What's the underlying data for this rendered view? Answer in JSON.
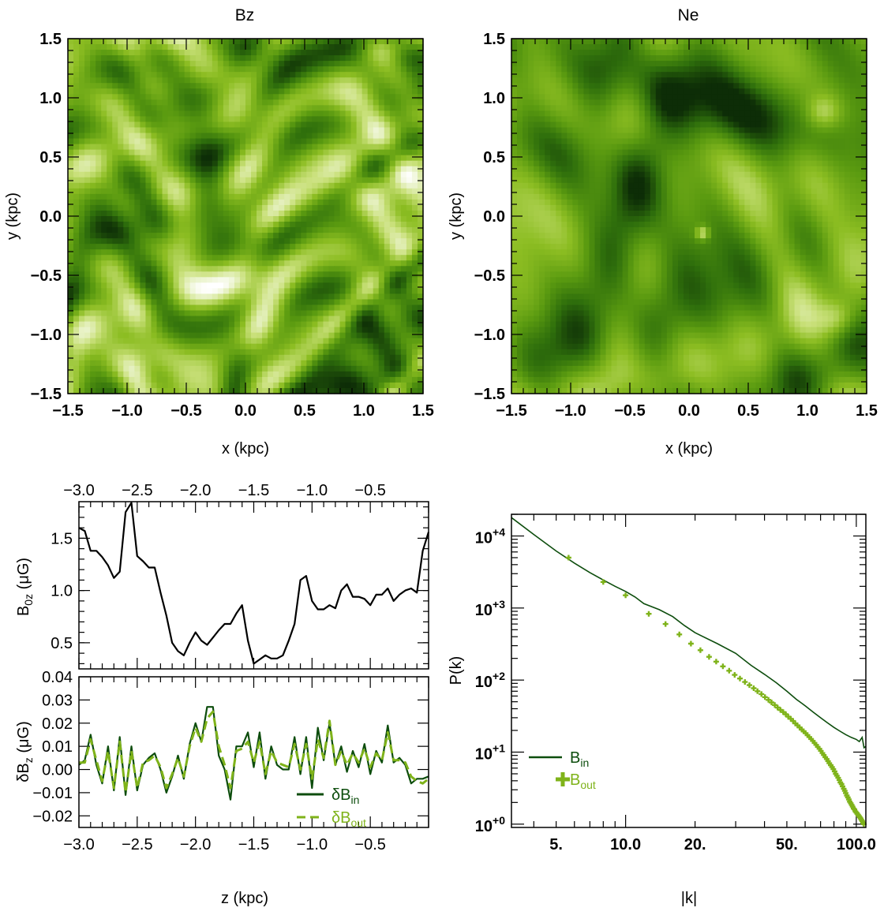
{
  "chart_data": [
    {
      "type": "heatmap",
      "title": "Bz",
      "xlabel": "x (kpc)",
      "ylabel": "y (kpc)",
      "xlim": [
        -1.5,
        1.5
      ],
      "ylim": [
        -1.5,
        1.5
      ],
      "xticks": [
        "−1.5",
        "−1.0",
        "−0.5",
        "0.0",
        "0.5",
        "1.0",
        "1.5"
      ],
      "yticks": [
        "−1.5",
        "−1.0",
        "−0.5",
        "0.0",
        "0.5",
        "1.0",
        "1.5"
      ],
      "colormap": [
        "#0d2d07",
        "#2f6f0c",
        "#5a9a10",
        "#8cbd22",
        "#c9e07a",
        "#ffffff"
      ]
    },
    {
      "type": "heatmap",
      "title": "Ne",
      "xlabel": "x (kpc)",
      "ylabel": "y (kpc)",
      "xlim": [
        -1.5,
        1.5
      ],
      "ylim": [
        -1.5,
        1.5
      ],
      "xticks": [
        "−1.5",
        "−1.0",
        "−0.5",
        "0.0",
        "0.5",
        "1.0",
        "1.5"
      ],
      "yticks": [
        "−1.5",
        "−1.0",
        "−0.5",
        "0.0",
        "0.5",
        "1.0",
        "1.5"
      ],
      "colormap": [
        "#0d2d07",
        "#2f6f0c",
        "#5a9a10",
        "#8cbd22",
        "#c9e07a",
        "#ffffff"
      ]
    },
    {
      "type": "line",
      "ylabel_main": "B",
      "ylabel_sub": "0z",
      "ylabel_unit": "(μG)",
      "xlim": [
        -3.0,
        0.0
      ],
      "ylim": [
        0.25,
        1.85
      ],
      "xticks": [
        "−3.0",
        "−2.5",
        "−2.0",
        "−1.5",
        "−1.0",
        "−0.5"
      ],
      "yticks": [
        "0.5",
        "1.0",
        "1.5"
      ],
      "series": [
        {
          "color": "#000000",
          "x": [
            -3.0,
            -2.95,
            -2.9,
            -2.85,
            -2.8,
            -2.75,
            -2.7,
            -2.65,
            -2.6,
            -2.55,
            -2.5,
            -2.45,
            -2.4,
            -2.35,
            -2.3,
            -2.25,
            -2.2,
            -2.15,
            -2.1,
            -2.05,
            -2.0,
            -1.95,
            -1.9,
            -1.85,
            -1.8,
            -1.75,
            -1.7,
            -1.65,
            -1.6,
            -1.55,
            -1.5,
            -1.45,
            -1.4,
            -1.35,
            -1.3,
            -1.25,
            -1.2,
            -1.15,
            -1.1,
            -1.05,
            -1.0,
            -0.95,
            -0.9,
            -0.85,
            -0.8,
            -0.75,
            -0.7,
            -0.65,
            -0.6,
            -0.55,
            -0.5,
            -0.45,
            -0.4,
            -0.35,
            -0.3,
            -0.25,
            -0.2,
            -0.15,
            -0.1,
            -0.05,
            0.0
          ],
          "y": [
            1.6,
            1.57,
            1.38,
            1.38,
            1.32,
            1.24,
            1.12,
            1.18,
            1.75,
            1.84,
            1.33,
            1.28,
            1.22,
            1.22,
            0.98,
            0.76,
            0.5,
            0.42,
            0.38,
            0.5,
            0.6,
            0.52,
            0.48,
            0.55,
            0.62,
            0.68,
            0.68,
            0.78,
            0.86,
            0.52,
            0.3,
            0.34,
            0.38,
            0.35,
            0.35,
            0.38,
            0.52,
            0.68,
            1.1,
            1.14,
            0.9,
            0.82,
            0.82,
            0.86,
            0.83,
            1.0,
            1.06,
            0.94,
            0.94,
            0.92,
            0.86,
            0.96,
            0.96,
            1.02,
            0.9,
            0.96,
            1.0,
            1.02,
            0.98,
            1.38,
            1.56
          ]
        }
      ]
    },
    {
      "type": "line",
      "xlabel": "z (kpc)",
      "ylabel_main": "δB",
      "ylabel_sub": "z",
      "ylabel_unit": "(μG)",
      "xlim": [
        -3.0,
        0.0
      ],
      "ylim": [
        -0.025,
        0.04
      ],
      "xticks": [
        "−3.0",
        "−2.5",
        "−2.0",
        "−1.5",
        "−1.0",
        "−0.5"
      ],
      "yticks": [
        "−0.02",
        "−0.01",
        "0.00",
        "0.01",
        "0.02",
        "0.03",
        "0.04"
      ],
      "series": [
        {
          "name_main": "δB",
          "name_sub": "in",
          "color": "#0d4d0d",
          "dash": "solid",
          "x": [
            -3.0,
            -2.95,
            -2.9,
            -2.85,
            -2.8,
            -2.75,
            -2.7,
            -2.65,
            -2.6,
            -2.55,
            -2.5,
            -2.45,
            -2.4,
            -2.35,
            -2.3,
            -2.25,
            -2.2,
            -2.15,
            -2.1,
            -2.05,
            -2.0,
            -1.95,
            -1.9,
            -1.85,
            -1.8,
            -1.75,
            -1.7,
            -1.65,
            -1.6,
            -1.55,
            -1.5,
            -1.45,
            -1.4,
            -1.35,
            -1.3,
            -1.25,
            -1.2,
            -1.15,
            -1.1,
            -1.05,
            -1.0,
            -0.95,
            -0.9,
            -0.85,
            -0.8,
            -0.75,
            -0.7,
            -0.65,
            -0.6,
            -0.55,
            -0.5,
            -0.45,
            -0.4,
            -0.35,
            -0.3,
            -0.25,
            -0.2,
            -0.15,
            -0.1,
            -0.05,
            0.0
          ],
          "y": [
            0.002,
            0.004,
            0.015,
            0.002,
            -0.006,
            0.01,
            -0.009,
            0.014,
            -0.011,
            0.01,
            -0.009,
            0.002,
            0.005,
            0.007,
            0.0,
            -0.01,
            -0.003,
            0.006,
            -0.004,
            0.011,
            0.02,
            0.012,
            0.027,
            0.027,
            0.006,
            0.0,
            -0.013,
            0.01,
            0.01,
            0.016,
            0.001,
            0.016,
            -0.004,
            0.01,
            0.002,
            0.0,
            0.0,
            0.014,
            -0.002,
            0.014,
            -0.008,
            0.018,
            0.004,
            0.02,
            0.002,
            0.01,
            -0.001,
            0.008,
            0.001,
            0.011,
            -0.002,
            0.008,
            0.003,
            0.019,
            0.003,
            0.005,
            0.002,
            -0.006,
            -0.004,
            -0.004,
            -0.003
          ]
        },
        {
          "name_main": "δB",
          "name_sub": "out",
          "color": "#7fb31a",
          "dash": "dashed",
          "x": [
            -3.0,
            -2.95,
            -2.9,
            -2.85,
            -2.8,
            -2.75,
            -2.7,
            -2.65,
            -2.6,
            -2.55,
            -2.5,
            -2.45,
            -2.4,
            -2.35,
            -2.3,
            -2.25,
            -2.2,
            -2.15,
            -2.1,
            -2.05,
            -2.0,
            -1.95,
            -1.9,
            -1.85,
            -1.8,
            -1.75,
            -1.7,
            -1.65,
            -1.6,
            -1.55,
            -1.5,
            -1.45,
            -1.4,
            -1.35,
            -1.3,
            -1.25,
            -1.2,
            -1.15,
            -1.1,
            -1.05,
            -1.0,
            -0.95,
            -0.9,
            -0.85,
            -0.8,
            -0.75,
            -0.7,
            -0.65,
            -0.6,
            -0.55,
            -0.5,
            -0.45,
            -0.4,
            -0.35,
            -0.3,
            -0.25,
            -0.2,
            -0.15,
            -0.1,
            -0.05,
            0.0
          ],
          "y": [
            0.003,
            0.003,
            0.013,
            0.004,
            -0.005,
            0.008,
            -0.008,
            0.012,
            -0.01,
            0.008,
            -0.008,
            0.003,
            0.004,
            0.006,
            0.001,
            -0.008,
            -0.002,
            0.005,
            -0.003,
            0.01,
            0.018,
            0.012,
            0.022,
            0.025,
            0.01,
            0.002,
            -0.008,
            0.008,
            0.009,
            0.012,
            0.003,
            0.012,
            -0.002,
            0.008,
            0.003,
            0.002,
            0.001,
            0.011,
            0.0,
            0.011,
            -0.004,
            0.013,
            0.005,
            0.021,
            0.002,
            0.008,
            0.002,
            0.007,
            0.003,
            0.009,
            0.001,
            0.007,
            0.004,
            0.016,
            0.004,
            0.004,
            0.003,
            -0.003,
            -0.005,
            -0.006,
            -0.004
          ]
        }
      ]
    },
    {
      "type": "line",
      "xlabel": "|k|",
      "ylabel": "P(k)",
      "xscale": "log",
      "yscale": "log",
      "xlim": [
        3.2,
        110
      ],
      "ylim": [
        0.9,
        20000
      ],
      "xticks": [
        "5.",
        "10.0",
        "20.",
        "50.",
        "100.0"
      ],
      "yticks": [
        "10",
        "10",
        "10",
        "10",
        "10"
      ],
      "ytick_exponents": [
        "+0",
        "+1",
        "+2",
        "+3",
        "+4"
      ],
      "series": [
        {
          "name_main": "B",
          "name_sub": "in",
          "color": "#0d4d0d",
          "dash": "solid",
          "x": [
            3.2,
            4,
            5,
            6,
            7,
            8,
            9,
            10,
            11,
            12,
            14,
            16,
            18,
            20,
            25,
            30,
            35,
            40,
            45,
            50,
            55,
            60,
            65,
            70,
            75,
            80,
            85,
            90,
            95,
            100,
            103,
            106,
            108,
            110
          ],
          "y": [
            18000,
            10500,
            6200,
            4200,
            3100,
            2450,
            2000,
            1700,
            1420,
            1150,
            950,
            760,
            570,
            455,
            320,
            235,
            160,
            120,
            92,
            70,
            54,
            44,
            36,
            30,
            25.5,
            22,
            19.5,
            17.5,
            16,
            15,
            14,
            16,
            11.5,
            12
          ]
        },
        {
          "name_main": "B",
          "name_sub": "out",
          "color": "#7fb31a",
          "dash": "markers",
          "x": [
            5.66,
            8.0,
            10.0,
            12.6,
            14.9,
            17.1,
            19.2,
            21.1,
            23.0,
            24.7,
            26.4,
            28.1,
            29.7,
            31.3,
            32.9,
            34.4,
            35.9,
            37.3,
            38.8,
            40.2,
            41.6,
            42.9,
            44.3,
            45.6,
            46.9,
            48.2,
            49.5,
            50.7,
            52.0,
            53.2,
            54.4,
            55.6,
            56.8,
            58.0,
            59.1,
            60.3,
            61.4,
            62.6,
            63.7,
            64.8,
            65.9,
            67.0,
            68.1,
            69.2,
            70.2,
            71.3,
            72.3,
            73.4,
            74.4,
            75.4,
            76.4,
            77.5,
            78.5,
            79.5,
            80.5,
            81.4,
            82.4,
            83.4,
            84.4,
            85.3,
            86.3,
            87.2,
            88.2,
            89.1,
            90.0,
            91.0,
            91.9,
            92.8,
            93.7,
            94.6,
            95.5,
            96.4,
            97.3,
            98.2,
            99.1,
            100.0,
            100.9,
            101.8,
            102.6,
            103.5,
            104.4,
            105.2,
            106.1,
            107.0,
            107.8
          ],
          "y": [
            5000,
            2300,
            1500,
            830,
            600,
            430,
            320,
            260,
            210,
            180,
            155,
            135,
            118,
            105,
            94,
            85,
            77,
            70,
            64,
            58,
            53,
            49,
            45,
            41.5,
            38.5,
            36,
            33.5,
            31,
            29,
            27,
            25,
            23.5,
            22,
            20.5,
            19.5,
            18.3,
            17.2,
            16.2,
            15.2,
            14.3,
            13.4,
            12.6,
            11.8,
            11.1,
            10.4,
            9.7,
            9.1,
            8.5,
            8.0,
            7.5,
            7.0,
            6.6,
            6.2,
            5.8,
            5.4,
            5.0,
            4.7,
            4.4,
            4.1,
            3.8,
            3.6,
            3.35,
            3.1,
            2.9,
            2.7,
            2.5,
            2.35,
            2.2,
            2.05,
            1.95,
            1.85,
            1.75,
            1.65,
            1.6,
            1.5,
            1.45,
            1.4,
            1.35,
            1.3,
            1.25,
            1.2,
            1.15,
            1.1,
            1.05,
            1.0
          ]
        }
      ]
    }
  ]
}
